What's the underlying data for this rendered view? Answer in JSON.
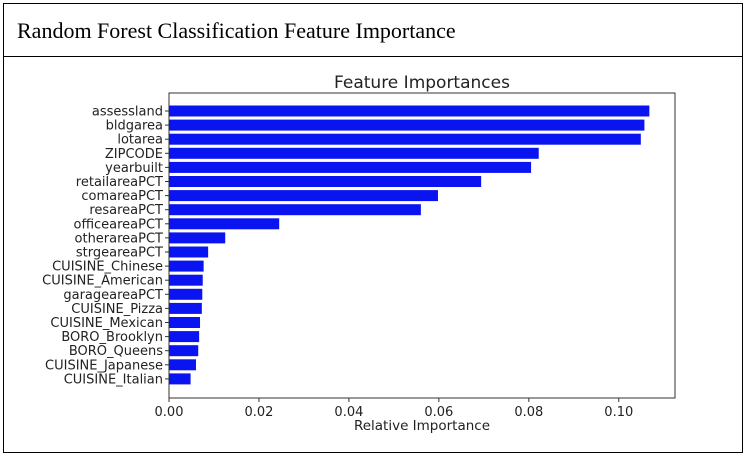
{
  "header": {
    "title": "Random Forest Classification Feature Importance"
  },
  "chart_data": {
    "type": "bar",
    "orientation": "horizontal",
    "title": "Feature Importances",
    "xlabel": "Relative Importance",
    "ylabel": "",
    "xlim": [
      0.0,
      0.1125
    ],
    "xticks": [
      0.0,
      0.02,
      0.04,
      0.06,
      0.08,
      0.1
    ],
    "xtick_labels": [
      "0.00",
      "0.02",
      "0.04",
      "0.06",
      "0.08",
      "0.10"
    ],
    "grid": false,
    "bar_color": "#0a14f0",
    "categories": [
      "assessland",
      "bldgarea",
      "lotarea",
      "ZIPCODE",
      "yearbuilt",
      "retailareaPCT",
      "comareaPCT",
      "resareaPCT",
      "officeareaPCT",
      "otherareaPCT",
      "strgeareaPCT",
      "CUISINE_Chinese",
      "CUISINE_American",
      "garageareaPCT",
      "CUISINE_Pizza",
      "CUISINE_Mexican",
      "BORO_Brooklyn",
      "BORO_Queens",
      "CUISINE_Japanese",
      "CUISINE_Italian"
    ],
    "values": [
      0.1068,
      0.1057,
      0.1049,
      0.0822,
      0.0805,
      0.0694,
      0.0598,
      0.056,
      0.0245,
      0.0125,
      0.0087,
      0.0077,
      0.0075,
      0.0074,
      0.0073,
      0.0069,
      0.0067,
      0.0065,
      0.006,
      0.0048
    ]
  }
}
